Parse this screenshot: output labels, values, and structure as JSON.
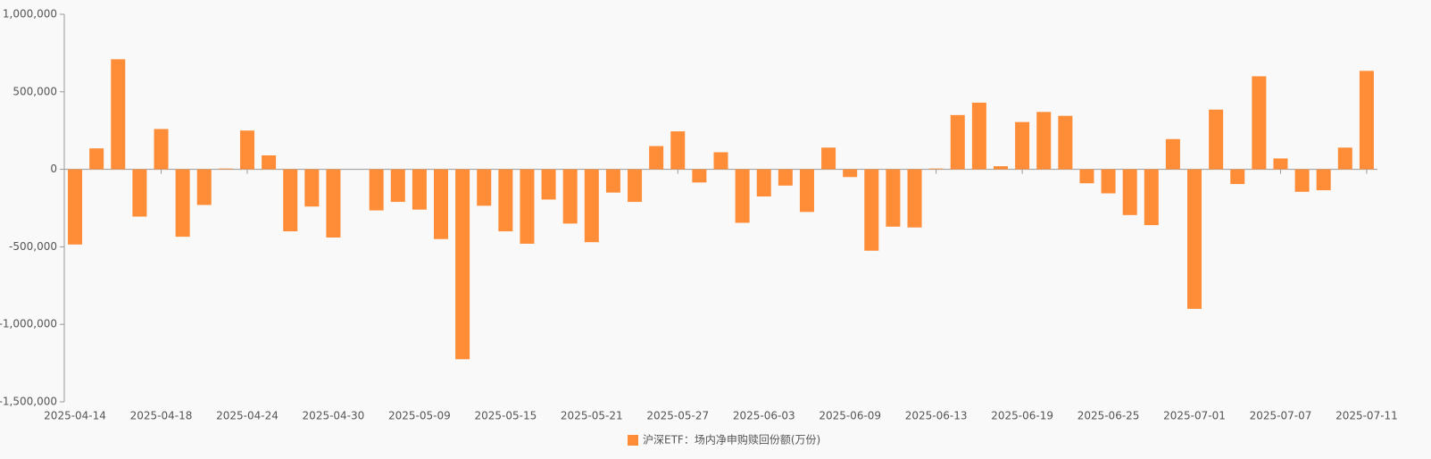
{
  "chart_data": {
    "type": "bar",
    "categories": [
      "2025-04-14",
      null,
      null,
      null,
      "2025-04-18",
      null,
      null,
      null,
      "2025-04-24",
      null,
      null,
      null,
      "2025-04-30",
      null,
      null,
      null,
      "2025-05-09",
      null,
      null,
      null,
      "2025-05-15",
      null,
      null,
      null,
      "2025-05-21",
      null,
      null,
      null,
      "2025-05-27",
      null,
      null,
      null,
      "2025-06-03",
      null,
      null,
      null,
      "2025-06-09",
      null,
      null,
      null,
      "2025-06-13",
      null,
      null,
      null,
      "2025-06-19",
      null,
      null,
      null,
      "2025-06-25",
      null,
      null,
      null,
      "2025-07-01",
      null,
      null,
      null,
      "2025-07-07",
      null,
      null,
      null,
      "2025-07-11"
    ],
    "series": [
      {
        "name": "沪深ETF：场内净申购赎回份额(万份)",
        "color": "#ff8c37",
        "values": [
          -485000,
          135000,
          710000,
          -305000,
          260000,
          -435000,
          -230000,
          5000,
          250000,
          90000,
          -400000,
          -240000,
          -440000,
          0,
          -265000,
          -210000,
          -260000,
          -450000,
          -1225000,
          -235000,
          -400000,
          -480000,
          -195000,
          -350000,
          -470000,
          -150000,
          -210000,
          150000,
          245000,
          -85000,
          110000,
          -345000,
          -175000,
          -105000,
          -275000,
          140000,
          -50000,
          -525000,
          -370000,
          -375000,
          5000,
          350000,
          430000,
          20000,
          305000,
          370000,
          345000,
          -90000,
          -155000,
          -295000,
          -360000,
          195000,
          -900000,
          385000,
          -95000,
          600000,
          70000,
          -145000,
          -135000,
          140000,
          635000
        ]
      }
    ],
    "ylim": [
      -1500000,
      1000000
    ],
    "yticks": [
      {
        "value": -1500000,
        "label": "-1,500,000"
      },
      {
        "value": -1000000,
        "label": "-1,000,000"
      },
      {
        "value": -500000,
        "label": "-500,000"
      },
      0,
      {
        "value": 500000,
        "label": "500,000"
      },
      {
        "value": 1000000,
        "label": "1,000,000"
      }
    ],
    "legend": "bottom"
  }
}
